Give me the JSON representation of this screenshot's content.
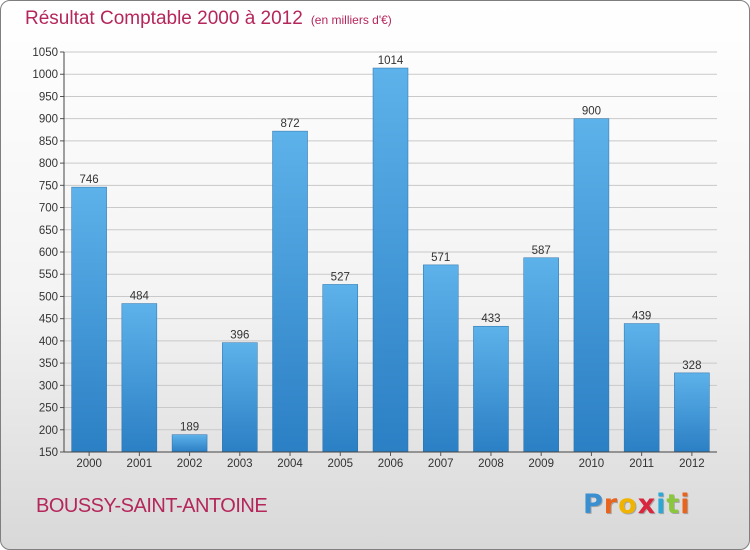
{
  "header": {
    "title": "Résultat Comptable 2000 à 2012",
    "unit": "(en milliers d'€)"
  },
  "chart_data": {
    "type": "bar",
    "title": "Résultat Comptable 2000 à 2012",
    "subtitle": "(en milliers d'€)",
    "categories": [
      "2000",
      "2001",
      "2002",
      "2003",
      "2004",
      "2005",
      "2006",
      "2007",
      "2008",
      "2009",
      "2010",
      "2011",
      "2012"
    ],
    "values": [
      746,
      484,
      189,
      396,
      872,
      527,
      1014,
      571,
      433,
      587,
      900,
      439,
      328
    ],
    "ylim": [
      150,
      1050
    ],
    "ytick_step": 50,
    "xlabel": "",
    "ylabel": "",
    "grid": true,
    "bar_color": "#3d97d8"
  },
  "footer": {
    "commune": "BOUSSY-SAINT-ANTOINE",
    "logo_letters": [
      "P",
      "r",
      "o",
      "x",
      "i",
      "t",
      "i"
    ],
    "logo_colors": [
      "#3a8fd0",
      "#e8641c",
      "#f0b400",
      "#d7263d",
      "#2aa9d6",
      "#8cc63f",
      "#e8641c"
    ]
  }
}
